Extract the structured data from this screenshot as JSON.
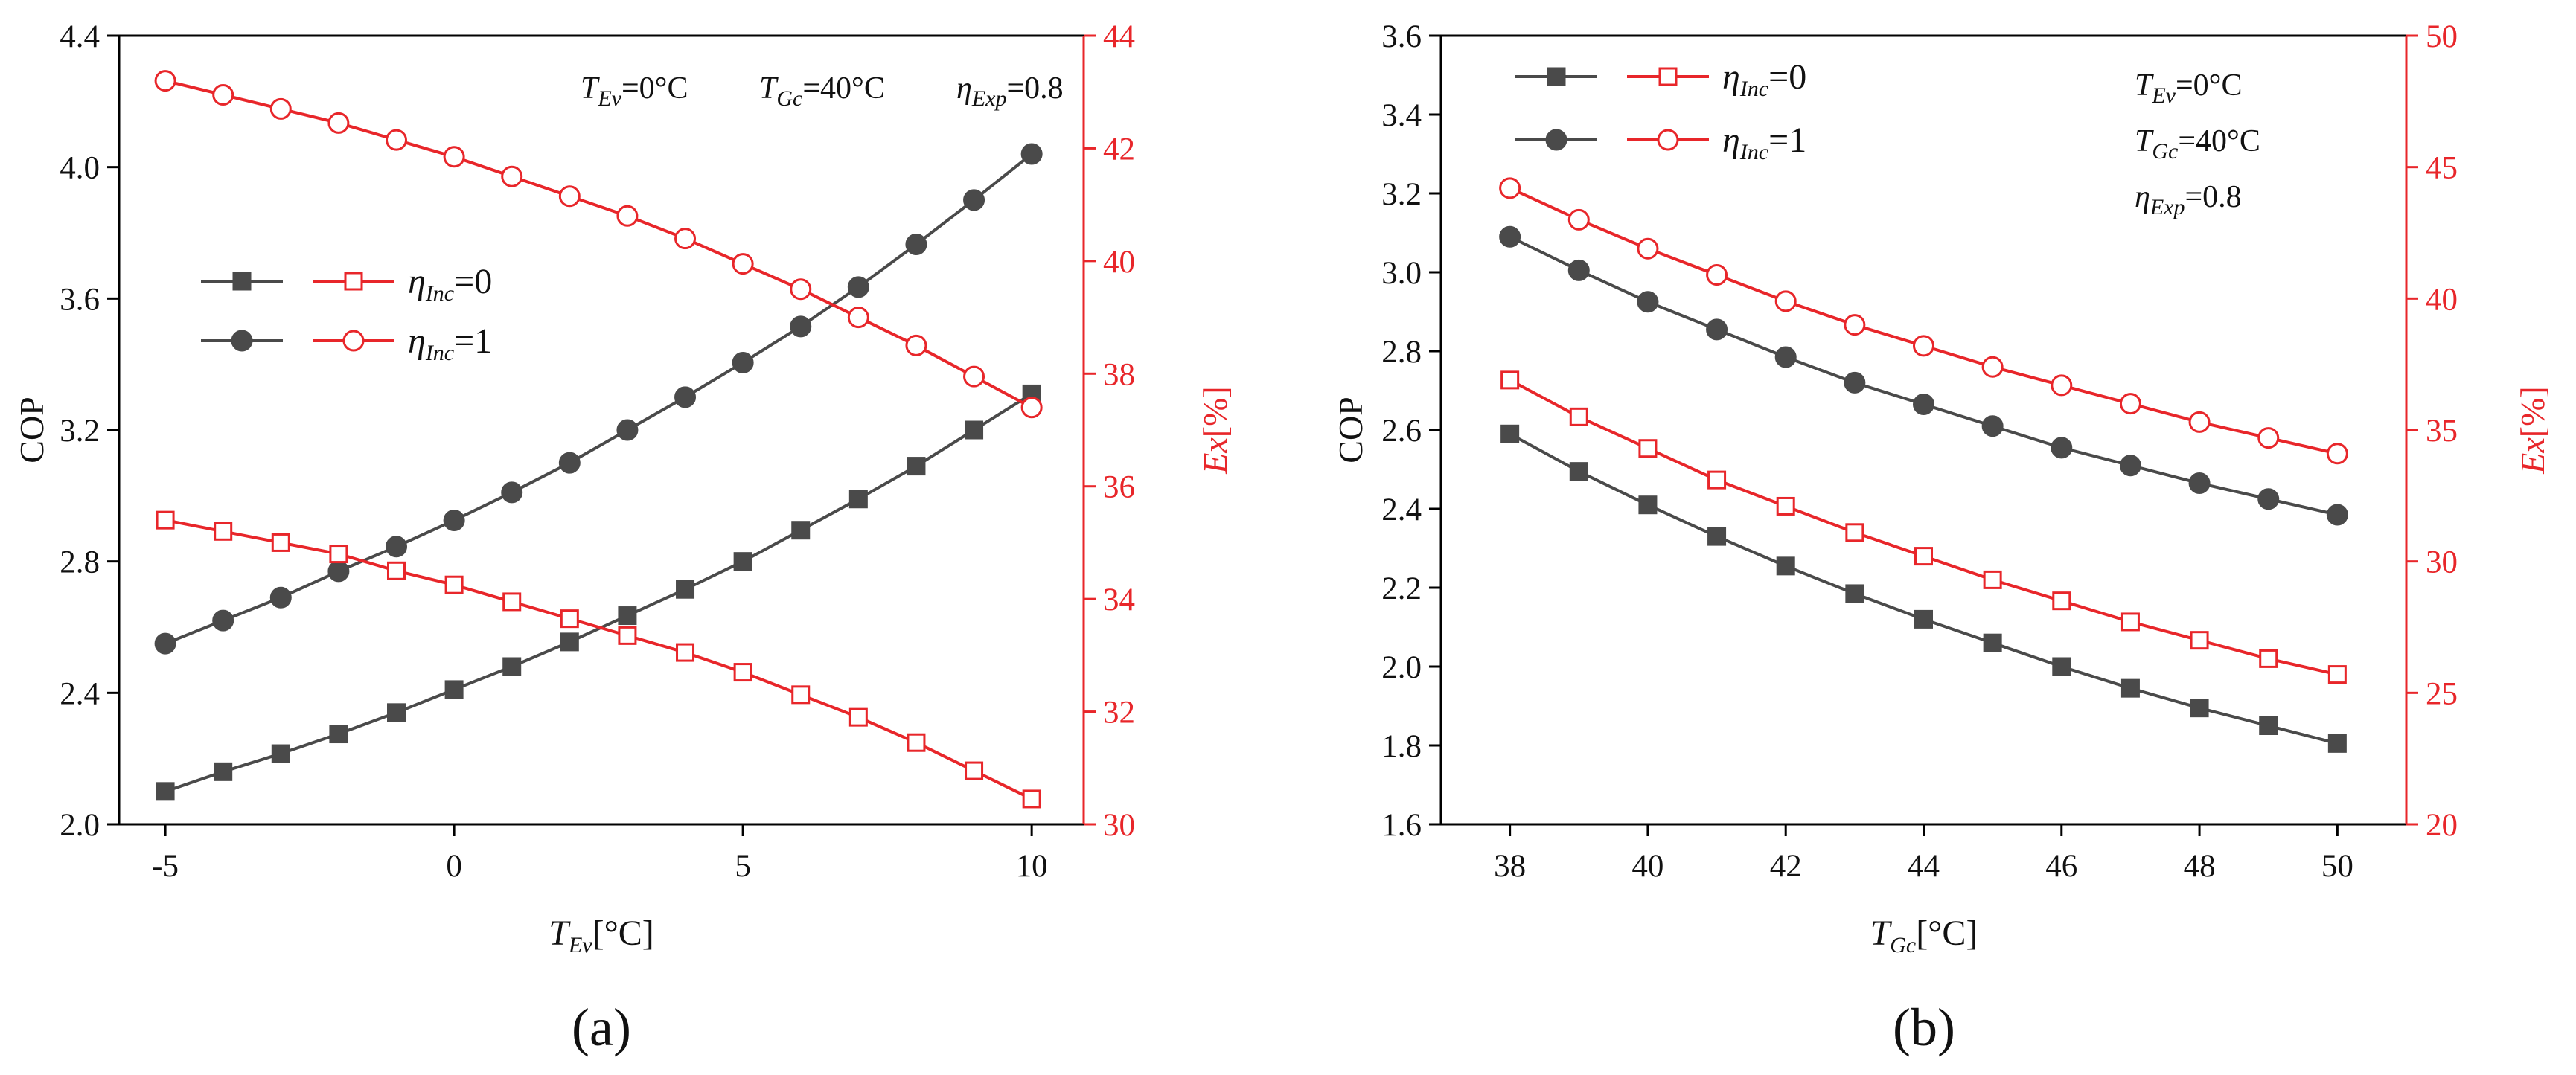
{
  "colors": {
    "cop": "#4a4a4a",
    "ex": "#e8262a",
    "axis": "#000000"
  },
  "chart_data": [
    {
      "type": "line",
      "panel_label": "(a)",
      "xlabel": {
        "symbol": "T",
        "sub": "Ev",
        "unit": "[°C]"
      },
      "ylabel_left": "COP",
      "ylabel_right": {
        "name": "Ex",
        "unit": "[%]"
      },
      "xlim": [
        -5.8,
        10.9
      ],
      "ylim_left": [
        2.0,
        4.4
      ],
      "ylim_right": [
        30,
        44
      ],
      "xticks": [
        -5,
        0,
        5,
        10
      ],
      "yticks_left": [
        2.0,
        2.4,
        2.8,
        3.2,
        3.6,
        4.0,
        4.4
      ],
      "yticks_right": [
        30,
        32,
        34,
        36,
        38,
        40,
        42,
        44
      ],
      "x": [
        -5,
        -4,
        -3,
        -2,
        -1,
        0,
        1,
        2,
        3,
        4,
        5,
        6,
        7,
        8,
        9,
        10
      ],
      "series": [
        {
          "name": "COP η_Inc=0",
          "axis": "left",
          "marker": "square-filled",
          "values": [
            2.1,
            2.16,
            2.215,
            2.275,
            2.34,
            2.41,
            2.48,
            2.555,
            2.635,
            2.715,
            2.8,
            2.895,
            2.99,
            3.09,
            3.2,
            3.31
          ]
        },
        {
          "name": "COP η_Inc=1",
          "axis": "left",
          "marker": "circle-filled",
          "values": [
            2.55,
            2.62,
            2.69,
            2.77,
            2.845,
            2.925,
            3.01,
            3.1,
            3.2,
            3.3,
            3.405,
            3.515,
            3.635,
            3.765,
            3.9,
            4.04
          ]
        },
        {
          "name": "Ex η_Inc=0",
          "axis": "right",
          "marker": "square-open",
          "values": [
            35.4,
            35.2,
            35.0,
            34.8,
            34.5,
            34.25,
            33.95,
            33.65,
            33.35,
            33.05,
            32.7,
            32.3,
            31.9,
            31.45,
            30.95,
            30.45
          ]
        },
        {
          "name": "Ex η_Inc=1",
          "axis": "right",
          "marker": "circle-open",
          "values": [
            43.2,
            42.95,
            42.7,
            42.45,
            42.15,
            41.85,
            41.5,
            41.15,
            40.8,
            40.4,
            39.95,
            39.5,
            39.0,
            38.5,
            37.95,
            37.4
          ]
        }
      ],
      "legend": {
        "position": "left-middle",
        "entries": [
          {
            "greek": "η",
            "sub": "Inc",
            "value": "=0"
          },
          {
            "greek": "η",
            "sub": "Inc",
            "value": "=1"
          }
        ]
      },
      "conditions": [
        "T_Ev=0°C",
        "T_Gc=40°C",
        "η_Exp=0.8"
      ],
      "conditions_position": "top-center"
    },
    {
      "type": "line",
      "panel_label": "(b)",
      "xlabel": {
        "symbol": "T",
        "sub": "Gc",
        "unit": "[°C]"
      },
      "ylabel_left": "COP",
      "ylabel_right": {
        "name": "Ex",
        "unit": "[%]"
      },
      "xlim": [
        37,
        51
      ],
      "ylim_left": [
        1.6,
        3.6
      ],
      "ylim_right": [
        20,
        50
      ],
      "xticks": [
        38,
        40,
        42,
        44,
        46,
        48,
        50
      ],
      "yticks_left": [
        1.6,
        1.8,
        2.0,
        2.2,
        2.4,
        2.6,
        2.8,
        3.0,
        3.2,
        3.4,
        3.6
      ],
      "yticks_right": [
        20,
        25,
        30,
        35,
        40,
        45,
        50
      ],
      "x": [
        38,
        39,
        40,
        41,
        42,
        43,
        44,
        45,
        46,
        47,
        48,
        49,
        50
      ],
      "series": [
        {
          "name": "COP η_Inc=0",
          "axis": "left",
          "marker": "square-filled",
          "values": [
            2.59,
            2.495,
            2.41,
            2.33,
            2.255,
            2.185,
            2.12,
            2.06,
            2.0,
            1.945,
            1.895,
            1.85,
            1.805
          ]
        },
        {
          "name": "COP η_Inc=1",
          "axis": "left",
          "marker": "circle-filled",
          "values": [
            3.09,
            3.005,
            2.925,
            2.855,
            2.785,
            2.72,
            2.665,
            2.61,
            2.555,
            2.51,
            2.465,
            2.425,
            2.385
          ]
        },
        {
          "name": "Ex η_Inc=0",
          "axis": "right",
          "marker": "square-open",
          "values": [
            36.9,
            35.5,
            34.3,
            33.1,
            32.1,
            31.1,
            30.2,
            29.3,
            28.5,
            27.7,
            27.0,
            26.3,
            25.7
          ]
        },
        {
          "name": "Ex η_Inc=1",
          "axis": "right",
          "marker": "circle-open",
          "values": [
            44.2,
            43.0,
            41.9,
            40.9,
            39.9,
            39.0,
            38.2,
            37.4,
            36.7,
            36.0,
            35.3,
            34.7,
            34.1
          ]
        }
      ],
      "legend": {
        "position": "top-left",
        "entries": [
          {
            "greek": "η",
            "sub": "Inc",
            "value": "=0"
          },
          {
            "greek": "η",
            "sub": "Inc",
            "value": "=1"
          }
        ]
      },
      "conditions": [
        "T_Ev=0°C",
        "T_Gc=40°C",
        "η_Exp=0.8"
      ],
      "conditions_position": "top-right"
    }
  ]
}
